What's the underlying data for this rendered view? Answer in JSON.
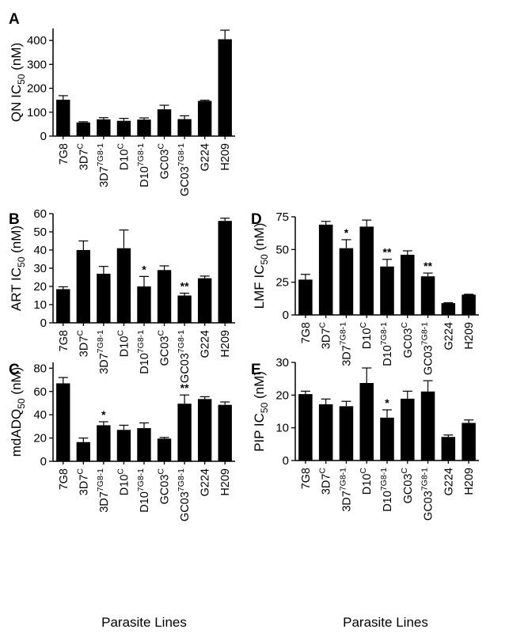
{
  "figure": {
    "xlabel_left": "Parasite Lines",
    "xlabel_right": "Parasite Lines"
  },
  "chart_data": [
    {
      "id": "A",
      "type": "bar",
      "panel_label": "A",
      "ylabel": {
        "main": "QN IC",
        "sub": "50",
        "tail": " (nM)"
      },
      "ylim": [
        0,
        450
      ],
      "yticks": [
        0,
        100,
        200,
        300,
        400
      ],
      "categories": [
        {
          "base": "7G8"
        },
        {
          "base": "3D7",
          "sup": "C"
        },
        {
          "base": "3D7",
          "sup": "7G8-1"
        },
        {
          "base": "D10",
          "sup": "C"
        },
        {
          "base": "D10",
          "sup": "7G8-1"
        },
        {
          "base": "GC03",
          "sup": "C"
        },
        {
          "base": "GC03",
          "sup": "7G8-1"
        },
        {
          "base": "G224"
        },
        {
          "base": "H209"
        }
      ],
      "values": [
        152,
        57,
        70,
        64,
        69,
        112,
        71,
        147,
        405
      ],
      "errors": [
        17,
        3,
        7,
        10,
        7,
        17,
        14,
        3,
        38
      ],
      "significance": [
        "",
        "",
        "",
        "",
        "",
        "",
        "",
        "",
        ""
      ]
    },
    {
      "id": "B",
      "type": "bar",
      "panel_label": "B",
      "ylabel": {
        "main": "ART IC",
        "sub": "50",
        "tail": " (nM)"
      },
      "ylim": [
        0,
        60
      ],
      "yticks": [
        0,
        10,
        20,
        30,
        40,
        50,
        60
      ],
      "categories": [
        {
          "base": "7G8"
        },
        {
          "base": "3D7",
          "sup": "C"
        },
        {
          "base": "3D7",
          "sup": "7G8-1"
        },
        {
          "base": "D10",
          "sup": "C"
        },
        {
          "base": "D10",
          "sup": "7G8-1"
        },
        {
          "base": "GC03",
          "sup": "C"
        },
        {
          "base": "GC03",
          "sup": "7G8-1"
        },
        {
          "base": "G224"
        },
        {
          "base": "H209"
        }
      ],
      "values": [
        18.5,
        40,
        27,
        41,
        20,
        29,
        15,
        24.5,
        56
      ],
      "errors": [
        1.3,
        5,
        4,
        10,
        5.5,
        2.3,
        1.3,
        1.2,
        1.5
      ],
      "significance": [
        "",
        "",
        "",
        "",
        "*",
        "",
        "**",
        "",
        ""
      ]
    },
    {
      "id": "C",
      "type": "bar",
      "panel_label": "C",
      "ylabel": {
        "main": "mdADQ",
        "sub": "50",
        "tail": " (nM)"
      },
      "ylim": [
        0,
        85
      ],
      "yticks": [
        0,
        20,
        40,
        60,
        80
      ],
      "categories": [
        {
          "base": "7G8"
        },
        {
          "base": "3D7",
          "sup": "C"
        },
        {
          "base": "3D7",
          "sup": "7G8-1"
        },
        {
          "base": "D10",
          "sup": "C"
        },
        {
          "base": "D10",
          "sup": "7G8-1"
        },
        {
          "base": "GC03",
          "sup": "C"
        },
        {
          "base": "GC03",
          "sup": "7G8-1"
        },
        {
          "base": "G224"
        },
        {
          "base": "H209"
        }
      ],
      "values": [
        67,
        16.5,
        31,
        27,
        28.5,
        19.5,
        49.5,
        53.5,
        48.5
      ],
      "errors": [
        5,
        3.5,
        3,
        4,
        4.5,
        1,
        7.5,
        2,
        2.5
      ],
      "significance": [
        "",
        "",
        "*",
        "",
        "",
        "",
        "**",
        "",
        ""
      ]
    },
    {
      "id": "D",
      "type": "bar",
      "panel_label": "D",
      "ylabel": {
        "main": "LMF IC",
        "sub": "50",
        "tail": " (nM)"
      },
      "ylim": [
        0,
        75
      ],
      "yticks": [
        0,
        25,
        50,
        75
      ],
      "categories": [
        {
          "base": "7G8"
        },
        {
          "base": "3D7",
          "sup": "C"
        },
        {
          "base": "3D7",
          "sup": "7G8-1"
        },
        {
          "base": "D10",
          "sup": "C"
        },
        {
          "base": "D10",
          "sup": "7G8-1"
        },
        {
          "base": "GC03",
          "sup": "C"
        },
        {
          "base": "GC03",
          "sup": "7G8-1"
        },
        {
          "base": "G224"
        },
        {
          "base": "H209"
        }
      ],
      "values": [
        27,
        69,
        51,
        67.5,
        37,
        46,
        29.5,
        9,
        15.5
      ],
      "errors": [
        4,
        2.5,
        6.5,
        5,
        5.5,
        3,
        2.5,
        0.3,
        0.3
      ],
      "significance": [
        "",
        "",
        "*",
        "",
        "**",
        "",
        "**",
        "",
        ""
      ]
    },
    {
      "id": "E",
      "type": "bar",
      "panel_label": "E",
      "ylabel": {
        "main": "PIP IC",
        "sub": "50",
        "tail": " (nM)"
      },
      "ylim": [
        0,
        30
      ],
      "yticks": [
        0,
        10,
        20,
        30
      ],
      "categories": [
        {
          "base": "7G8"
        },
        {
          "base": "3D7",
          "sup": "C"
        },
        {
          "base": "3D7",
          "sup": "7G8-1"
        },
        {
          "base": "D10",
          "sup": "C"
        },
        {
          "base": "D10",
          "sup": "7G8-1"
        },
        {
          "base": "GC03",
          "sup": "C"
        },
        {
          "base": "GC03",
          "sup": "7G8-1"
        },
        {
          "base": "G224"
        },
        {
          "base": "H209"
        }
      ],
      "values": [
        20.3,
        17.2,
        16.6,
        23.7,
        13.1,
        18.9,
        21.1,
        7.2,
        11.5
      ],
      "errors": [
        0.9,
        1.6,
        1.5,
        4.6,
        2.4,
        2.3,
        3.3,
        0.6,
        0.9
      ],
      "significance": [
        "",
        "",
        "",
        "",
        "*",
        "",
        "",
        "",
        ""
      ]
    }
  ]
}
